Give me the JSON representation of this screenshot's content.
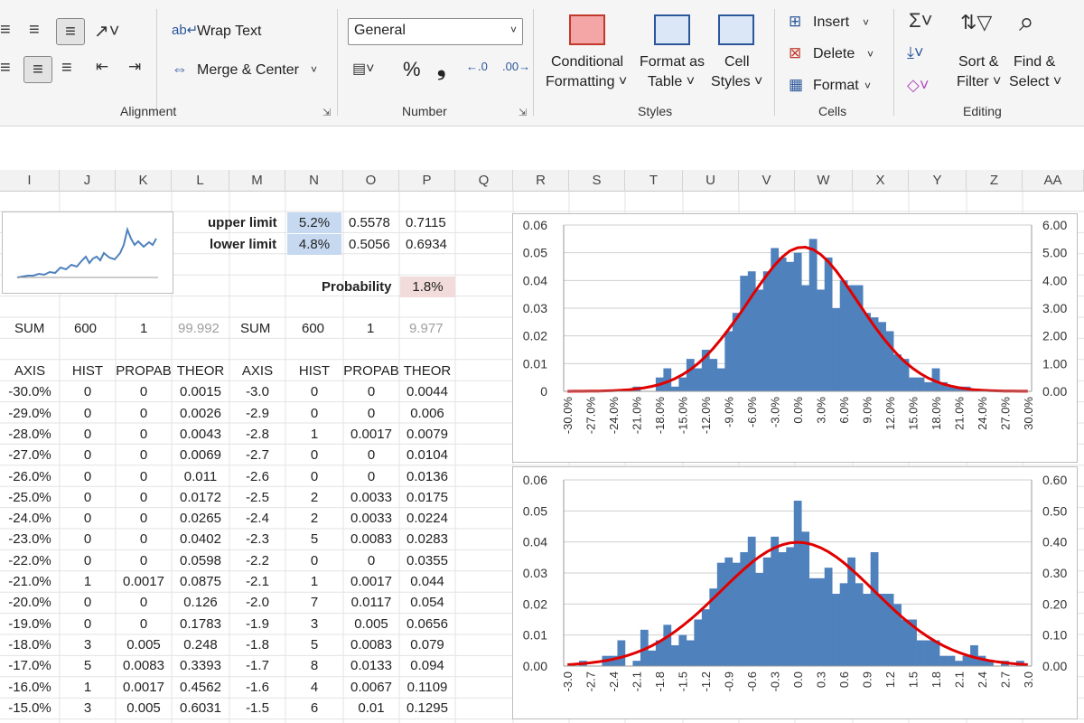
{
  "ribbon": {
    "alignment": {
      "wrap_text": "Wrap Text",
      "merge_center": "Merge & Center",
      "group_label": "Alignment"
    },
    "number": {
      "format_value": "General",
      "percent": "%",
      "comma": "❟",
      "group_label": "Number"
    },
    "styles": {
      "conditional_1": "Conditional",
      "conditional_2": "Formatting ˅",
      "format_as_1": "Format as",
      "format_as_2": "Table ˅",
      "cell_styles_1": "Cell",
      "cell_styles_2": "Styles ˅",
      "group_label": "Styles"
    },
    "cells": {
      "insert": "Insert",
      "delete": "Delete",
      "format": "Format",
      "group_label": "Cells"
    },
    "editing": {
      "sort_1": "Sort &",
      "sort_2": "Filter ˅",
      "find_1": "Find &",
      "find_2": "Select ˅",
      "group_label": "Editing"
    }
  },
  "columns": [
    "I",
    "J",
    "K",
    "L",
    "M",
    "N",
    "O",
    "P",
    "Q",
    "R",
    "S",
    "T",
    "U",
    "V",
    "W",
    "X",
    "Y",
    "Z",
    "AA"
  ],
  "summary": {
    "upper_label": "upper limit",
    "upper_pct": "5.2%",
    "upper_o": "0.5578",
    "upper_p": "0.7115",
    "lower_label": "lower limit",
    "lower_pct": "4.8%",
    "lower_o": "0.5056",
    "lower_p": "0.6934",
    "prob_label": "Probability",
    "prob_value": "1.8%",
    "sum_label_1": "SUM",
    "sum_j": "600",
    "sum_k": "1",
    "sum_l": "99.992",
    "sum_label_2": "SUM",
    "sum_n": "600",
    "sum_o": "1",
    "sum_p": "9.977"
  },
  "table_headers": [
    "AXIS",
    "HIST",
    "PROPAB",
    "THEOR",
    "AXIS",
    "HIST",
    "PROPAB",
    "THEOR"
  ],
  "table_rows": [
    [
      "-30.0%",
      "0",
      "0",
      "0.0015",
      "-3.0",
      "0",
      "0",
      "0.0044"
    ],
    [
      "-29.0%",
      "0",
      "0",
      "0.0026",
      "-2.9",
      "0",
      "0",
      "0.006"
    ],
    [
      "-28.0%",
      "0",
      "0",
      "0.0043",
      "-2.8",
      "1",
      "0.0017",
      "0.0079"
    ],
    [
      "-27.0%",
      "0",
      "0",
      "0.0069",
      "-2.7",
      "0",
      "0",
      "0.0104"
    ],
    [
      "-26.0%",
      "0",
      "0",
      "0.011",
      "-2.6",
      "0",
      "0",
      "0.0136"
    ],
    [
      "-25.0%",
      "0",
      "0",
      "0.0172",
      "-2.5",
      "2",
      "0.0033",
      "0.0175"
    ],
    [
      "-24.0%",
      "0",
      "0",
      "0.0265",
      "-2.4",
      "2",
      "0.0033",
      "0.0224"
    ],
    [
      "-23.0%",
      "0",
      "0",
      "0.0402",
      "-2.3",
      "5",
      "0.0083",
      "0.0283"
    ],
    [
      "-22.0%",
      "0",
      "0",
      "0.0598",
      "-2.2",
      "0",
      "0",
      "0.0355"
    ],
    [
      "-21.0%",
      "1",
      "0.0017",
      "0.0875",
      "-2.1",
      "1",
      "0.0017",
      "0.044"
    ],
    [
      "-20.0%",
      "0",
      "0",
      "0.126",
      "-2.0",
      "7",
      "0.0117",
      "0.054"
    ],
    [
      "-19.0%",
      "0",
      "0",
      "0.1783",
      "-1.9",
      "3",
      "0.005",
      "0.0656"
    ],
    [
      "-18.0%",
      "3",
      "0.005",
      "0.248",
      "-1.8",
      "5",
      "0.0083",
      "0.079"
    ],
    [
      "-17.0%",
      "5",
      "0.0083",
      "0.3393",
      "-1.7",
      "8",
      "0.0133",
      "0.094"
    ],
    [
      "-16.0%",
      "1",
      "0.0017",
      "0.4562",
      "-1.6",
      "4",
      "0.0067",
      "0.1109"
    ],
    [
      "-15.0%",
      "3",
      "0.005",
      "0.6031",
      "-1.5",
      "6",
      "0.01",
      "0.1295"
    ]
  ],
  "colors": {
    "bar": "#4f81bd",
    "curve": "#e00000",
    "blue_highlight": "#c6d9f0",
    "pink_highlight": "#f2dcdb"
  },
  "chart_data": [
    {
      "type": "bar",
      "x": [
        "-30.0%",
        "-29.0%",
        "-28.0%",
        "-27.0%",
        "-26.0%",
        "-25.0%",
        "-24.0%",
        "-23.0%",
        "-22.0%",
        "-21.0%",
        "-20.0%",
        "-19.0%",
        "-18.0%",
        "-17.0%",
        "-16.0%",
        "-15.0%",
        "-14.0%",
        "-13.0%",
        "-12.0%",
        "-11.0%",
        "-10.0%",
        "-9.0%",
        "-8.0%",
        "-7.0%",
        "-6.0%",
        "-5.0%",
        "-4.0%",
        "-3.0%",
        "-2.0%",
        "-1.0%",
        "0.0%",
        "1.0%",
        "2.0%",
        "3.0%",
        "4.0%",
        "5.0%",
        "6.0%",
        "7.0%",
        "8.0%",
        "9.0%",
        "10.0%",
        "11.0%",
        "12.0%",
        "13.0%",
        "14.0%",
        "15.0%",
        "16.0%",
        "17.0%",
        "18.0%",
        "19.0%",
        "20.0%",
        "21.0%",
        "22.0%",
        "23.0%",
        "24.0%",
        "25.0%",
        "26.0%",
        "27.0%",
        "28.0%",
        "29.0%",
        "30.0%"
      ],
      "x_tick_labels": [
        "-30.0%",
        "-27.0%",
        "-24.0%",
        "-21.0%",
        "-18.0%",
        "-15.0%",
        "-12.0%",
        "-9.0%",
        "-6.0%",
        "-3.0%",
        "0.0%",
        "3.0%",
        "6.0%",
        "9.0%",
        "12.0%",
        "15.0%",
        "18.0%",
        "21.0%",
        "24.0%",
        "27.0%",
        "30.0%"
      ],
      "series": [
        {
          "kind": "bar",
          "axis": "left",
          "values": [
            0,
            0,
            0,
            0,
            0,
            0,
            0,
            0,
            0,
            0.0017,
            0,
            0,
            0.005,
            0.0083,
            0.0017,
            0.005,
            0.0117,
            0.0083,
            0.015,
            0.0117,
            0.0083,
            0.0217,
            0.0283,
            0.0417,
            0.0433,
            0.0367,
            0.0433,
            0.0517,
            0.0483,
            0.0467,
            0.05,
            0.0383,
            0.055,
            0.0367,
            0.0483,
            0.03,
            0.04,
            0.0383,
            0.0383,
            0.0283,
            0.0267,
            0.025,
            0.0217,
            0.0133,
            0.0117,
            0.005,
            0.005,
            0.0033,
            0.0083,
            0.0033,
            0.0017,
            0.0017,
            0.0017,
            0,
            0,
            0,
            0,
            0,
            0,
            0,
            0
          ]
        },
        {
          "kind": "line",
          "axis": "right",
          "values": [
            0.0015,
            0.0026,
            0.0043,
            0.0069,
            0.011,
            0.0172,
            0.0265,
            0.0402,
            0.0598,
            0.0875,
            0.126,
            0.1783,
            0.248,
            0.3393,
            0.4562,
            0.6031,
            0.7833,
            1.0,
            1.255,
            1.55,
            1.88,
            2.24,
            2.62,
            3.01,
            3.42,
            3.82,
            4.2,
            4.55,
            4.85,
            5.07,
            5.18,
            5.2,
            5.12,
            4.94,
            4.68,
            4.35,
            3.97,
            3.57,
            3.16,
            2.75,
            2.35,
            1.98,
            1.64,
            1.33,
            1.06,
            0.83,
            0.64,
            0.48,
            0.36,
            0.26,
            0.19,
            0.13,
            0.09,
            0.06,
            0.04,
            0.026,
            0.017,
            0.011,
            0.007,
            0.004,
            0.0026
          ]
        }
      ],
      "y_left_ticks": [
        "0",
        "0.01",
        "0.02",
        "0.03",
        "0.04",
        "0.05",
        "0.06"
      ],
      "y_right_ticks": [
        "0.00",
        "1.00",
        "2.00",
        "3.00",
        "4.00",
        "5.00",
        "6.00"
      ],
      "y_left_range": [
        0,
        0.06
      ],
      "y_right_range": [
        0,
        6
      ],
      "grid": true
    },
    {
      "type": "bar",
      "x": [
        "-3.0",
        "-2.9",
        "-2.8",
        "-2.7",
        "-2.6",
        "-2.5",
        "-2.4",
        "-2.3",
        "-2.2",
        "-2.1",
        "-2.0",
        "-1.9",
        "-1.8",
        "-1.7",
        "-1.6",
        "-1.5",
        "-1.4",
        "-1.3",
        "-1.2",
        "-1.1",
        "-1.0",
        "-0.9",
        "-0.8",
        "-0.7",
        "-0.6",
        "-0.5",
        "-0.4",
        "-0.3",
        "-0.2",
        "-0.1",
        "0.0",
        "0.1",
        "0.2",
        "0.3",
        "0.4",
        "0.5",
        "0.6",
        "0.7",
        "0.8",
        "0.9",
        "1.0",
        "1.1",
        "1.2",
        "1.3",
        "1.4",
        "1.5",
        "1.6",
        "1.7",
        "1.8",
        "1.9",
        "2.0",
        "2.1",
        "2.2",
        "2.3",
        "2.4",
        "2.5",
        "2.6",
        "2.7",
        "2.8",
        "2.9",
        "3.0"
      ],
      "x_tick_labels": [
        "-3.0",
        "-2.7",
        "-2.4",
        "-2.1",
        "-1.8",
        "-1.5",
        "-1.2",
        "-0.9",
        "-0.6",
        "-0.3",
        "0.0",
        "0.3",
        "0.6",
        "0.9",
        "1.2",
        "1.5",
        "1.8",
        "2.1",
        "2.4",
        "2.7",
        "3.0"
      ],
      "series": [
        {
          "kind": "bar",
          "axis": "left",
          "values": [
            0,
            0,
            0.0017,
            0,
            0,
            0.0033,
            0.0033,
            0.0083,
            0,
            0.0017,
            0.0117,
            0.005,
            0.0083,
            0.0133,
            0.0067,
            0.01,
            0.0083,
            0.015,
            0.0183,
            0.025,
            0.0333,
            0.035,
            0.0333,
            0.0367,
            0.0417,
            0.03,
            0.035,
            0.0417,
            0.0367,
            0.0383,
            0.0533,
            0.0433,
            0.0283,
            0.0283,
            0.0317,
            0.0233,
            0.0267,
            0.035,
            0.0267,
            0.0233,
            0.0367,
            0.0233,
            0.0233,
            0.02,
            0.015,
            0.015,
            0.0083,
            0.0083,
            0.0083,
            0.0033,
            0.0033,
            0.0017,
            0.0033,
            0.0067,
            0.0033,
            0.0017,
            0,
            0.0017,
            0,
            0.0017,
            0
          ]
        },
        {
          "kind": "line",
          "axis": "right",
          "values": [
            0.0044,
            0.006,
            0.0079,
            0.0104,
            0.0136,
            0.0175,
            0.0224,
            0.0283,
            0.0355,
            0.044,
            0.054,
            0.0656,
            0.079,
            0.094,
            0.1109,
            0.1295,
            0.1497,
            0.1714,
            0.1942,
            0.2179,
            0.242,
            0.2661,
            0.2897,
            0.3123,
            0.3332,
            0.3521,
            0.3683,
            0.3814,
            0.391,
            0.397,
            0.399,
            0.397,
            0.391,
            0.3814,
            0.3683,
            0.3521,
            0.3332,
            0.3123,
            0.2897,
            0.2661,
            0.242,
            0.2179,
            0.1942,
            0.1714,
            0.1497,
            0.1295,
            0.1109,
            0.094,
            0.079,
            0.0656,
            0.054,
            0.044,
            0.0355,
            0.0283,
            0.0224,
            0.0175,
            0.0136,
            0.0104,
            0.0079,
            0.006,
            0.0044
          ]
        }
      ],
      "y_left_ticks": [
        "0.00",
        "0.01",
        "0.02",
        "0.03",
        "0.04",
        "0.05",
        "0.06"
      ],
      "y_right_ticks": [
        "0.00",
        "0.10",
        "0.20",
        "0.30",
        "0.40",
        "0.50",
        "0.60"
      ],
      "y_left_range": [
        0,
        0.06
      ],
      "y_right_range": [
        0,
        0.6
      ],
      "grid": true
    }
  ]
}
